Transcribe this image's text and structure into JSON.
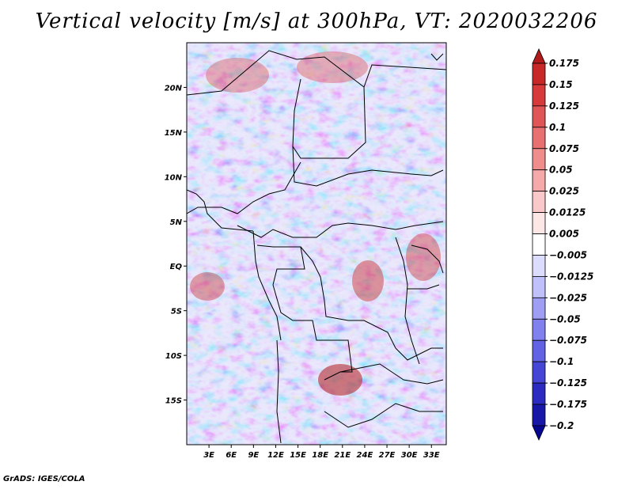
{
  "title": "Vertical velocity [m/s] at 300hPa, VT: 2020032206",
  "footer": "GrADS: IGES/COLA",
  "chart_data": {
    "type": "heatmap",
    "title": "Vertical velocity [m/s] at 300hPa, VT: 2020032206",
    "variable": "Vertical velocity",
    "units": "m/s",
    "level": "300hPa",
    "valid_time": "2020032206",
    "lon_range": [
      0,
      35
    ],
    "lat_range": [
      -20,
      25
    ],
    "x_ticks": [
      "3E",
      "6E",
      "9E",
      "12E",
      "15E",
      "18E",
      "21E",
      "24E",
      "27E",
      "30E",
      "33E"
    ],
    "x_tick_values": [
      3,
      6,
      9,
      12,
      15,
      18,
      21,
      24,
      27,
      30,
      33
    ],
    "y_ticks": [
      "20N",
      "15N",
      "10N",
      "5N",
      "EQ",
      "5S",
      "10S",
      "15S"
    ],
    "y_tick_values": [
      20,
      15,
      10,
      5,
      0,
      -5,
      -10,
      -15
    ],
    "colorbar": {
      "labels": [
        "0.175",
        "0.15",
        "0.125",
        "0.1",
        "0.075",
        "0.05",
        "0.025",
        "0.0125",
        "0.005",
        "−0.005",
        "−0.0125",
        "−0.025",
        "−0.05",
        "−0.075",
        "−0.1",
        "−0.125",
        "−0.175",
        "−0.2"
      ],
      "colors": [
        "#b01a1a",
        "#c82828",
        "#d63a3a",
        "#e05555",
        "#e87070",
        "#ef8c8c",
        "#f5a9a9",
        "#f9c8c8",
        "#fde6e6",
        "#ffffff",
        "#dcdcff",
        "#c0c0fb",
        "#9e9ef5",
        "#8080ee",
        "#6262e4",
        "#4545d6",
        "#2b2bc2",
        "#1717a8",
        "#060690"
      ],
      "extend": "both"
    }
  }
}
